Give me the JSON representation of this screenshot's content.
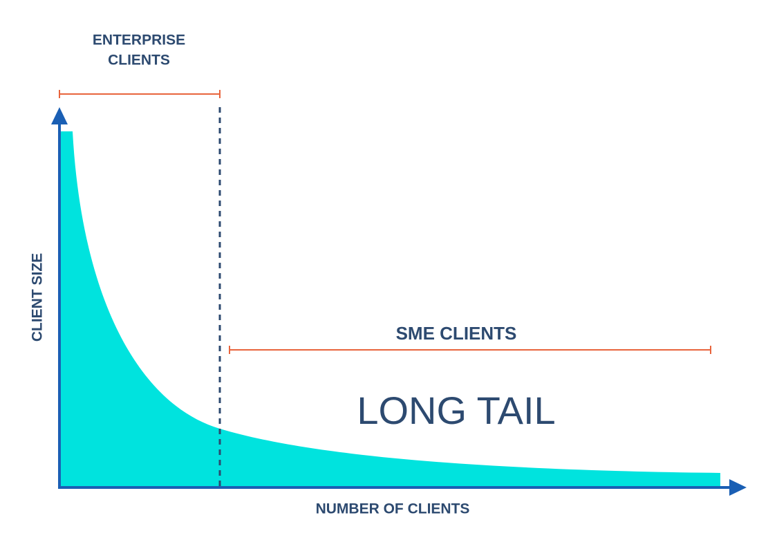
{
  "labels": {
    "enterprise": [
      "ENTERPRISE",
      "CLIENTS"
    ],
    "sme": "SME CLIENTS",
    "long_tail": "LONG TAIL",
    "y_axis": "CLIENT SIZE",
    "x_axis": "NUMBER OF CLIENTS"
  }
}
